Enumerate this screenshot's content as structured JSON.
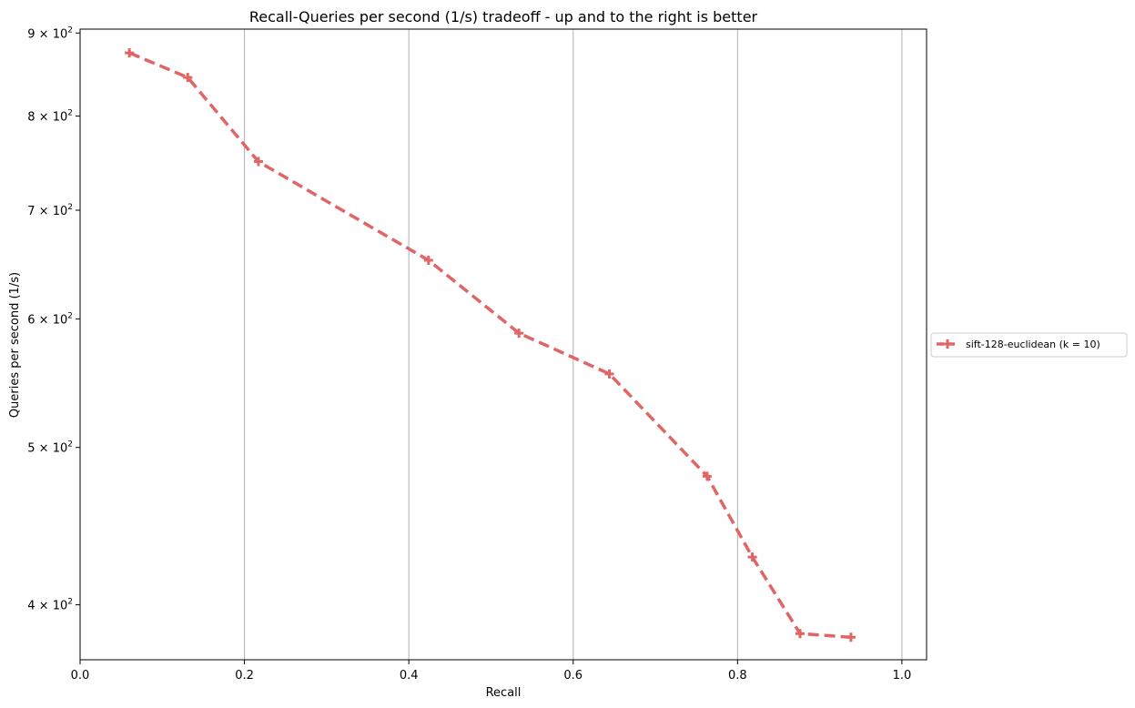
{
  "chart_data": {
    "type": "line",
    "title": "Recall-Queries per second (1/s) tradeoff - up and to the right is better",
    "xlabel": "Recall",
    "ylabel": "Queries per second (1/s)",
    "xlim": [
      0.0,
      1.03
    ],
    "ylim": [
      370,
      905
    ],
    "yscale": "log",
    "grid": "vertical",
    "x_ticks": [
      {
        "value": 0.0,
        "label": "0.0"
      },
      {
        "value": 0.2,
        "label": "0.2"
      },
      {
        "value": 0.4,
        "label": "0.4"
      },
      {
        "value": 0.6,
        "label": "0.6"
      },
      {
        "value": 0.8,
        "label": "0.8"
      },
      {
        "value": 1.0,
        "label": "1.0"
      }
    ],
    "y_ticks": [
      {
        "value": 400,
        "label": "4 × 10",
        "exp": "2"
      },
      {
        "value": 500,
        "label": "5 × 10",
        "exp": "2"
      },
      {
        "value": 600,
        "label": "6 × 10",
        "exp": "2"
      },
      {
        "value": 700,
        "label": "7 × 10",
        "exp": "2"
      },
      {
        "value": 800,
        "label": "8 × 10",
        "exp": "2"
      },
      {
        "value": 900,
        "label": "9 × 10",
        "exp": "2"
      }
    ],
    "legend_position": "right",
    "series": [
      {
        "name": "sift-128-euclidean (k = 10)",
        "color": "#e06666",
        "line_style": "dashed",
        "marker": "plus",
        "points": [
          {
            "x": 0.06,
            "y": 875
          },
          {
            "x": 0.131,
            "y": 845
          },
          {
            "x": 0.217,
            "y": 750
          },
          {
            "x": 0.424,
            "y": 652
          },
          {
            "x": 0.534,
            "y": 588
          },
          {
            "x": 0.644,
            "y": 555
          },
          {
            "x": 0.763,
            "y": 480
          },
          {
            "x": 0.818,
            "y": 428
          },
          {
            "x": 0.876,
            "y": 384
          },
          {
            "x": 0.938,
            "y": 382
          }
        ]
      }
    ]
  }
}
